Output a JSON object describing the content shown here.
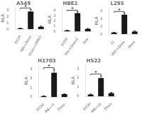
{
  "chart_data": [
    {
      "type": "bar",
      "title": "A549",
      "y_label": "RLA",
      "categories": [
        "EtOH",
        "IKKi+Doxo",
        "Doxo+DMSO"
      ],
      "values": [
        0.15,
        2.8,
        0.4
      ],
      "error": [
        0.05,
        0.3,
        0.1
      ],
      "color": "#1a1a1a",
      "ylim": [
        0,
        3.45
      ],
      "yticks": [
        0,
        1,
        2,
        3
      ],
      "grid": false,
      "annotations": [
        "*"
      ]
    },
    {
      "type": "bar",
      "title": "HBE2",
      "y_label": "RLA",
      "categories": [
        "EtOH",
        "IKKi+Doxo2",
        "Dox"
      ],
      "values": [
        0.2,
        3.5,
        0.5
      ],
      "error": [
        0.05,
        0.25,
        0.1
      ],
      "color": "#1a1a1a",
      "ylim": [
        0,
        4.6
      ],
      "yticks": [
        0,
        1,
        2,
        3,
        4
      ],
      "grid": false,
      "annotations": [
        "*"
      ]
    },
    {
      "type": "bar",
      "title": "L295",
      "y_label": "RLA",
      "categories": [
        "s1",
        "IKKi+Doxo",
        "Doxo"
      ],
      "values": [
        0.2,
        2.5,
        0.35
      ],
      "error": [
        0.05,
        0.2,
        0.08
      ],
      "color": "#1a1a1a",
      "ylim": [
        0,
        3.45
      ],
      "yticks": [
        0,
        1,
        2,
        3
      ],
      "grid": false,
      "annotations": [
        "*"
      ]
    },
    {
      "type": "bar",
      "title": "H1703",
      "y_label": "RLA",
      "categories": [
        "EtOH",
        "IKK+Vi",
        "Doxo"
      ],
      "values": [
        0.1,
        2.6,
        0.3
      ],
      "error": [
        0.04,
        0.3,
        0.05
      ],
      "color": "#1a1a1a",
      "ylim": [
        0,
        3.45
      ],
      "yticks": [
        0,
        1,
        2,
        3
      ],
      "grid": false,
      "annotations": [
        "*"
      ]
    },
    {
      "type": "bar",
      "title": "H522",
      "y_label": "RLA",
      "categories": [
        "EtOH",
        "IKKi+Vi",
        "Doxo"
      ],
      "values": [
        0.2,
        2.0,
        0.35
      ],
      "error": [
        0.05,
        0.25,
        0.08
      ],
      "color": "#1a1a1a",
      "ylim": [
        0,
        3.45
      ],
      "yticks": [
        0,
        1,
        2,
        3
      ],
      "grid": false,
      "annotations": [
        "*"
      ]
    }
  ]
}
